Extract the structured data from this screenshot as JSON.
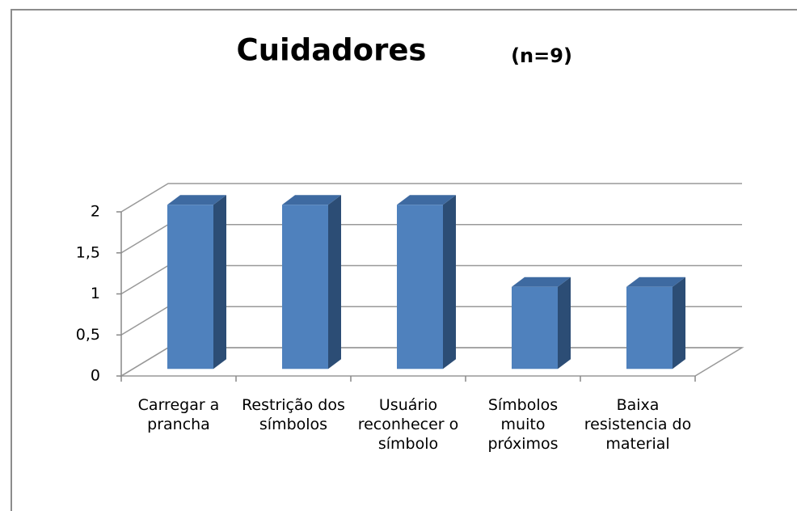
{
  "chart_data": {
    "type": "bar3d",
    "title": "Cuidadores",
    "subtitle": "(n=9)",
    "categories": [
      "Carregar a prancha",
      "Restrição dos símbolos",
      "Usuário reconhecer o símbolo",
      "Símbolos muito próximos",
      "Baixa resistencia do material"
    ],
    "values": [
      2,
      2,
      2,
      1,
      1
    ],
    "color": "#4f81bd",
    "ylim": [
      0,
      2
    ],
    "yticks": [
      0,
      {
        "value": 0.5,
        "label": "0,5"
      },
      1,
      {
        "value": 1.5,
        "label": "1,5"
      },
      2
    ],
    "grid": true
  }
}
